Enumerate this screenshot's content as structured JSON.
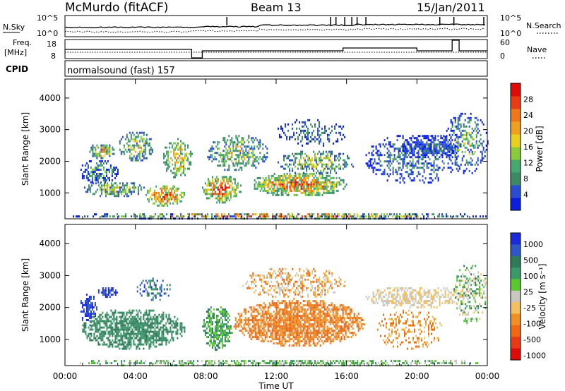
{
  "header": {
    "station": "McMurdo (fitACF)",
    "beam": "Beam 13",
    "date": "15/Jan/2011"
  },
  "top_panels": {
    "nsky_label": "N.Sky",
    "nsearch_label": "N.Search",
    "noise_ticks": [
      "10^5",
      "10^0"
    ],
    "noise_ticks_right": [
      "10^5",
      "10^0"
    ],
    "freq_label_1": "Freq.",
    "freq_label_2": "[MHz]",
    "freq_ticks": [
      "18",
      "8"
    ],
    "nave_label": "Nave",
    "nave_ticks": [
      "60",
      "0"
    ],
    "cpid_label": "CPID",
    "cpid_text": "normalsound (fast) 157"
  },
  "chart_data": [
    {
      "type": "heatmap",
      "panel": "power",
      "ylabel": "Slant Range [km]",
      "xlabel": "",
      "ylim": [
        180,
        4600
      ],
      "yticks": [
        "1000",
        "2000",
        "3000",
        "4000"
      ],
      "xticks": [
        "00:00",
        "04:00",
        "08:00",
        "12:00",
        "16:00",
        "20:00",
        "00:00"
      ],
      "colorbar": {
        "label": "Power [dB]",
        "ticks": [
          "4",
          "8",
          "12",
          "16",
          "20",
          "24",
          "28"
        ],
        "colors": [
          "#0a1ee0",
          "#2a4ed0",
          "#3f8a66",
          "#45a86e",
          "#8acb3c",
          "#e6d21e",
          "#f0a020",
          "#f07818",
          "#ea3c12",
          "#e00a0a"
        ]
      }
    },
    {
      "type": "heatmap",
      "panel": "velocity",
      "ylabel": "Slant Range [km]",
      "xlabel": "Time UT",
      "ylim": [
        180,
        4600
      ],
      "yticks": [
        "1000",
        "2000",
        "3000",
        "4000"
      ],
      "xticks": [
        "00:00",
        "04:00",
        "08:00",
        "12:00",
        "16:00",
        "20:00",
        "00:00"
      ],
      "colorbar": {
        "label": "Velocity [m s⁻¹]",
        "ticks": [
          "1000",
          "500",
          "100",
          "25",
          "-25",
          "-100",
          "-500",
          "-1000"
        ],
        "colors": [
          "#1a2ad8",
          "#2e58c8",
          "#2f7a5a",
          "#3c9a6a",
          "#5cc830",
          "#c8c8c0",
          "#f2c060",
          "#f09020",
          "#f06810",
          "#e83a14",
          "#e00a0a"
        ]
      }
    }
  ]
}
